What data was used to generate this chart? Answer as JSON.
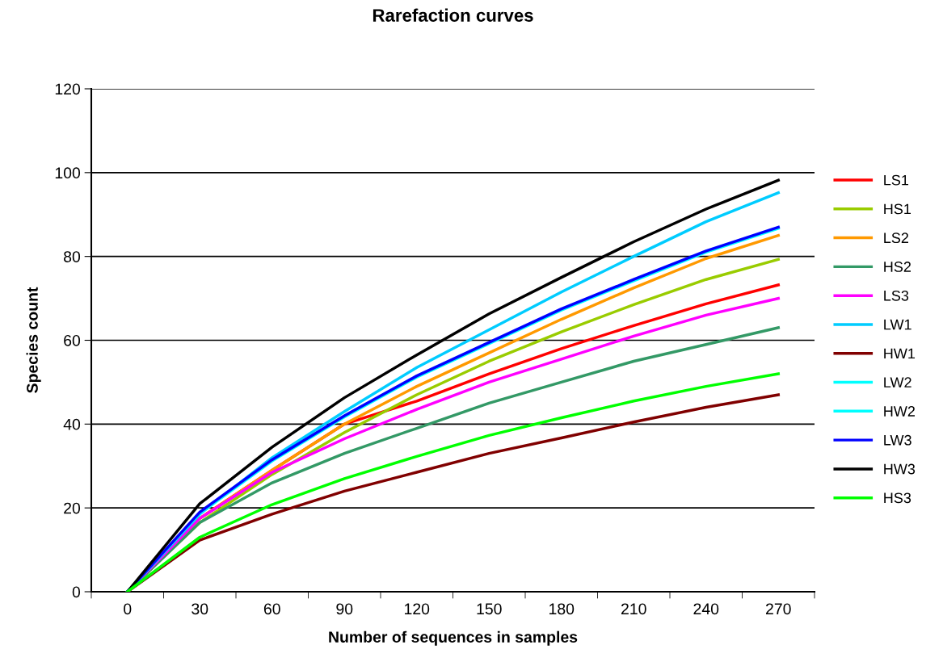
{
  "chart_data": {
    "type": "line",
    "title": "Rarefaction curves",
    "xlabel": "Number of sequences in samples",
    "ylabel": "Species count",
    "categories": [
      "0",
      "30",
      "60",
      "90",
      "120",
      "150",
      "180",
      "210",
      "240",
      "270"
    ],
    "ylim": [
      0,
      120
    ],
    "yticks": [
      0,
      20,
      40,
      60,
      80,
      100,
      120
    ],
    "grid": "y",
    "legend": "right",
    "marker": "none",
    "line_style": "solid",
    "series": [
      {
        "name": "LS1",
        "color": "#ff0000",
        "values": [
          0,
          17.5,
          29,
          40,
          45.5,
          52,
          58,
          63.5,
          68.7,
          73.2
        ]
      },
      {
        "name": "HS1",
        "color": "#99cc00",
        "values": [
          0,
          16.5,
          28,
          38,
          47,
          55,
          62,
          68.5,
          74.5,
          79.3
        ]
      },
      {
        "name": "LS2",
        "color": "#ff9900",
        "values": [
          0,
          17.5,
          29,
          40,
          49,
          57,
          65,
          72.5,
          79.5,
          85
        ]
      },
      {
        "name": "HS2",
        "color": "#339966",
        "values": [
          0,
          16.5,
          26,
          33,
          39,
          45,
          50,
          55,
          59,
          63
        ]
      },
      {
        "name": "LS3",
        "color": "#ff00ff",
        "values": [
          0,
          17.5,
          28.5,
          36.5,
          43.5,
          50,
          55.5,
          61,
          66,
          70
        ]
      },
      {
        "name": "LW1",
        "color": "#00ccff",
        "values": [
          0,
          18.5,
          32,
          43,
          53.5,
          62.5,
          71.5,
          80,
          88.3,
          95.2
        ]
      },
      {
        "name": "HW1",
        "color": "#800000",
        "values": [
          0,
          12.3,
          18.5,
          24,
          28.5,
          33,
          36.7,
          40.5,
          44,
          47
        ]
      },
      {
        "name": "LW2",
        "color": "#00ffff",
        "values": [
          0,
          18.7,
          31.2,
          41.7,
          51.2,
          59.2,
          67.2,
          74.2,
          81,
          86.7
        ]
      },
      {
        "name": "HW2",
        "color": "#00ffff",
        "values": [
          null,
          null,
          null,
          null,
          null,
          null,
          null,
          null,
          null,
          null
        ]
      },
      {
        "name": "LW3",
        "color": "#0000ff",
        "values": [
          0,
          19,
          31.5,
          42,
          51.5,
          59.5,
          67.5,
          74.5,
          81.3,
          87
        ]
      },
      {
        "name": "HW3",
        "color": "#000000",
        "values": [
          0,
          21,
          34.5,
          46.3,
          56.5,
          66.3,
          75,
          83.5,
          91.3,
          98.2
        ]
      },
      {
        "name": "HS3",
        "color": "#00ff00",
        "values": [
          0,
          13,
          20.8,
          27,
          32.3,
          37.3,
          41.5,
          45.5,
          49,
          52
        ]
      }
    ]
  }
}
